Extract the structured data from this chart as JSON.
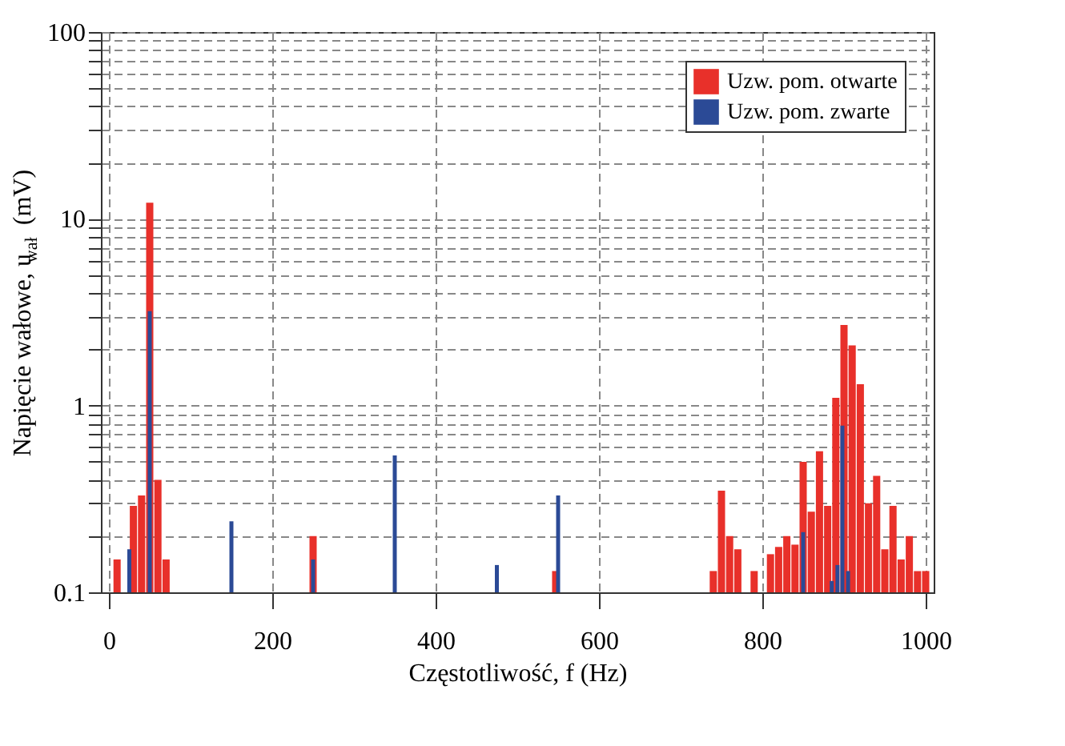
{
  "chart_data": {
    "type": "bar",
    "xlabel": "Częstotliwość, f (Hz)",
    "ylabel": "Napięcie wałowe, u$_{wał}$ (mV)",
    "series": [
      {
        "name": "Uzw. pom. otwarte",
        "color": "#e8302a",
        "x": [
          10,
          30,
          40,
          50,
          60,
          70,
          250,
          547,
          740,
          750,
          760,
          770,
          790,
          810,
          820,
          830,
          840,
          850,
          860,
          870,
          880,
          890,
          900,
          910,
          920,
          930,
          940,
          950,
          960,
          970,
          980,
          990,
          1000
        ],
        "values": [
          0.15,
          0.29,
          0.33,
          12.2,
          0.4,
          0.15,
          0.2,
          0.13,
          0.13,
          0.35,
          0.2,
          0.17,
          0.13,
          0.16,
          0.175,
          0.2,
          0.18,
          0.5,
          0.27,
          0.57,
          0.29,
          1.1,
          2.7,
          2.1,
          1.3,
          0.3,
          0.42,
          0.17,
          0.29,
          0.15,
          0.2,
          0.13,
          0.13
        ]
      },
      {
        "name": "Uzw. pom. zwarte",
        "color": "#2b4a96",
        "x": [
          25,
          50,
          150,
          250,
          350,
          475,
          550,
          850,
          885,
          892,
          898,
          905
        ],
        "values": [
          0.17,
          3.2,
          0.24,
          0.15,
          0.54,
          0.14,
          0.33,
          0.21,
          0.115,
          0.14,
          0.78,
          0.13
        ]
      }
    ],
    "xlim": [
      0,
      1000
    ],
    "xticks": [
      0,
      200,
      400,
      600,
      800,
      1000
    ],
    "ylim": [
      0.1,
      100
    ],
    "yticks": [
      0.1,
      {
        "value": 0.2,
        "label": null
      },
      {
        "value": 0.3,
        "label": null
      },
      {
        "value": 0.4,
        "label": null
      },
      {
        "value": 0.5,
        "label": null
      },
      {
        "value": 0.6,
        "label": null
      },
      {
        "value": 0.7,
        "label": null
      },
      {
        "value": 0.8,
        "label": null
      },
      {
        "value": 0.9,
        "label": null
      },
      1,
      {
        "value": 2,
        "label": null
      },
      {
        "value": 3,
        "label": null
      },
      {
        "value": 4,
        "label": null
      },
      {
        "value": 5,
        "label": null
      },
      {
        "value": 6,
        "label": null
      },
      {
        "value": 7,
        "label": null
      },
      {
        "value": 8,
        "label": null
      },
      {
        "value": 9,
        "label": null
      },
      10,
      {
        "value": 20,
        "label": null
      },
      {
        "value": 30,
        "label": null
      },
      {
        "value": 40,
        "label": null
      },
      {
        "value": 50,
        "label": null
      },
      {
        "value": 60,
        "label": null
      },
      {
        "value": 70,
        "label": null
      },
      {
        "value": 80,
        "label": null
      },
      {
        "value": 90,
        "label": null
      },
      100
    ],
    "log": true,
    "grid": true,
    "legend": "top right"
  }
}
